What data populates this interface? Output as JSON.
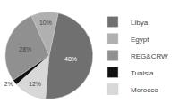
{
  "chart_data": {
    "type": "pie",
    "categories": [
      "Libya",
      "Egypt",
      "REG&CRW",
      "Tunisia",
      "Morocco"
    ],
    "values": [
      48,
      10,
      28,
      2,
      12
    ],
    "value_labels": [
      "48%",
      "10%",
      "28%",
      "2%",
      "12%"
    ],
    "colors": [
      "#707070",
      "#b0b0b0",
      "#909090",
      "#111111",
      "#d8d8d8"
    ],
    "data_labels": true,
    "legend": "right"
  }
}
